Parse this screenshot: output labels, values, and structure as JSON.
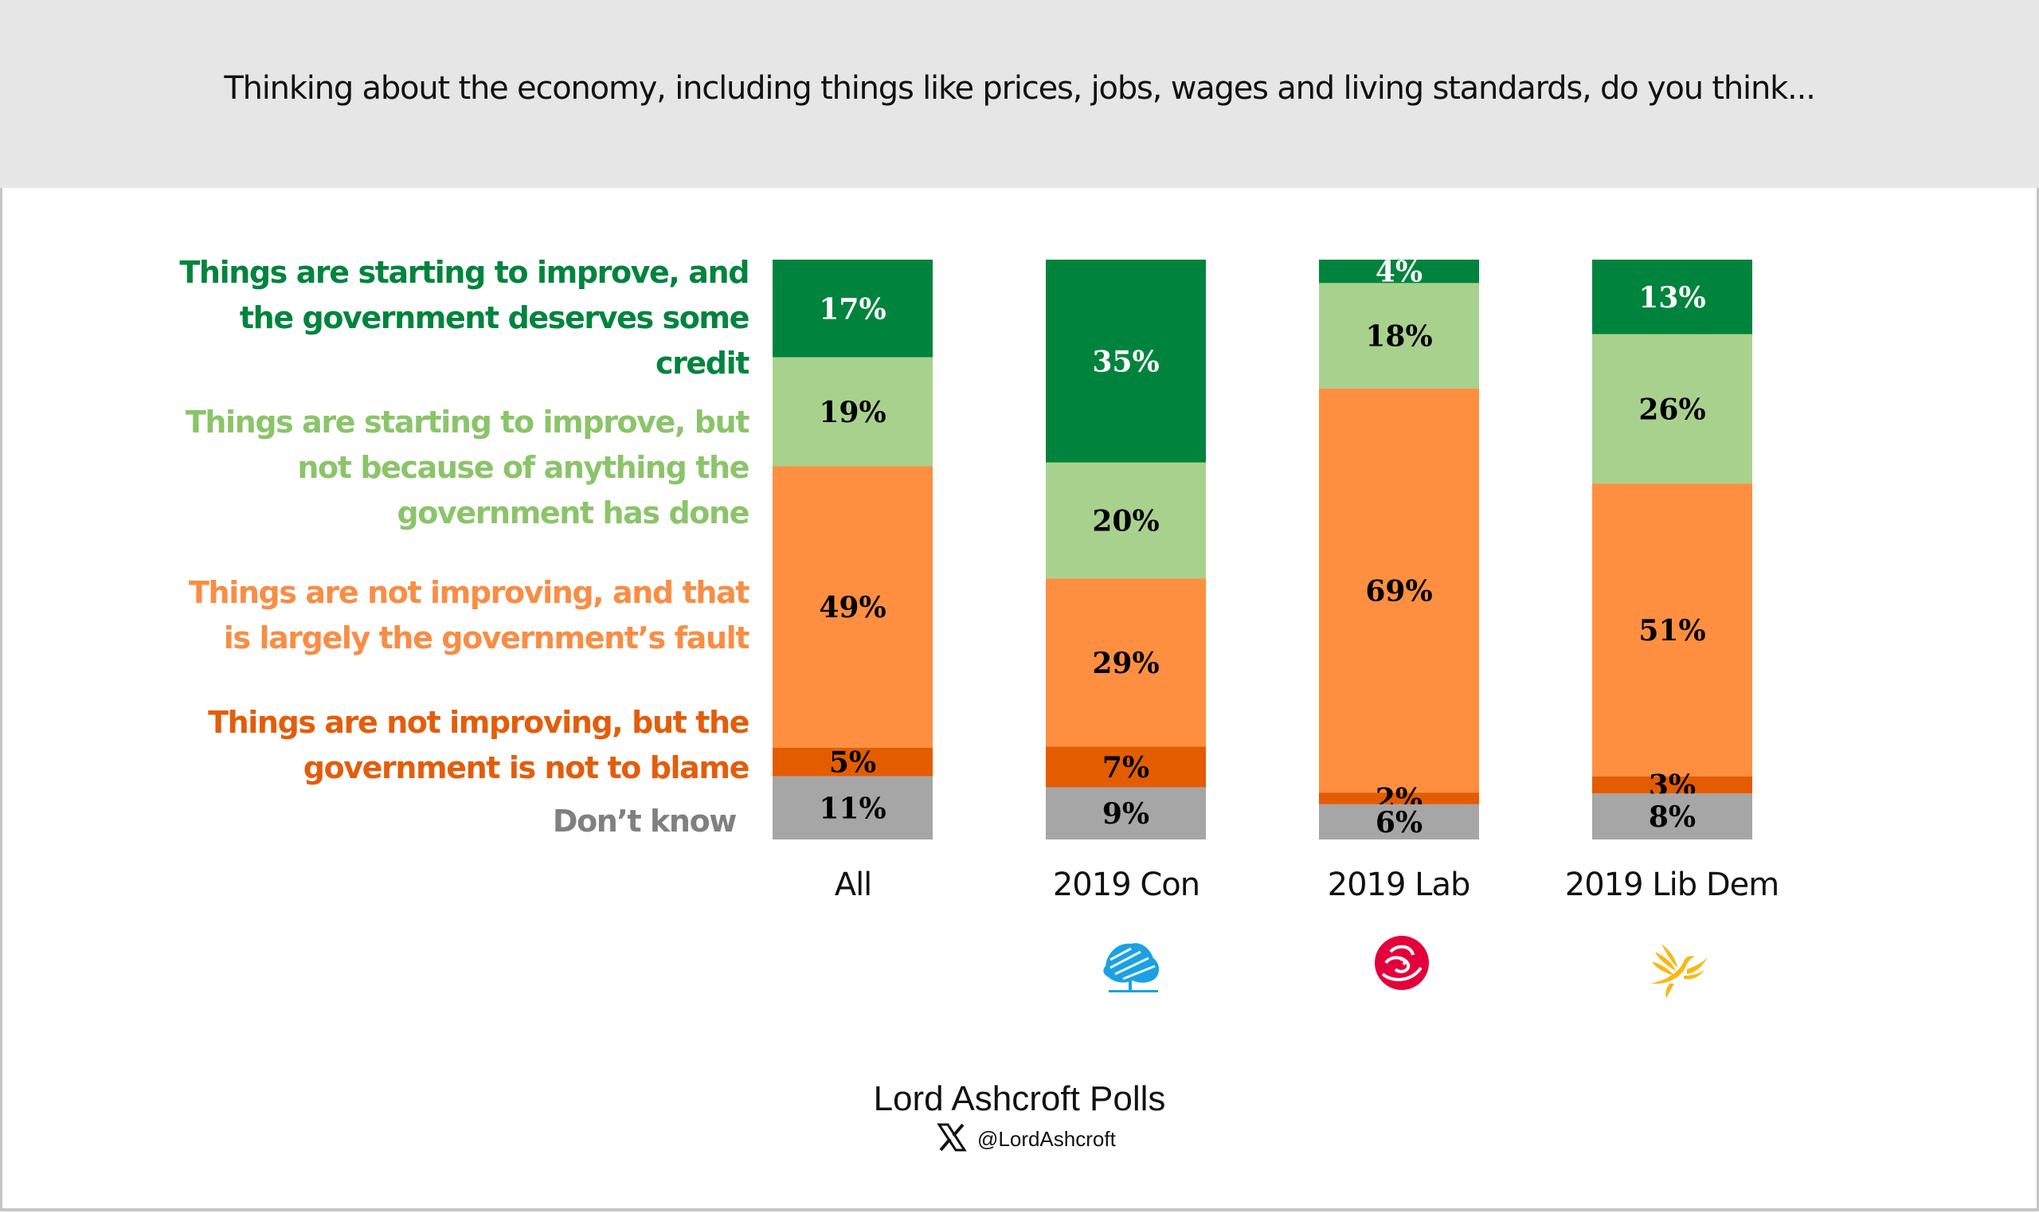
{
  "header": {
    "question": "Thinking about the economy, including things like prices, jobs, wages and living standards, do you think..."
  },
  "chart_data": {
    "type": "bar",
    "stacked": true,
    "orientation": "vertical",
    "title": "Thinking about the economy, including things like prices, jobs, wages and living standards, do you think...",
    "xlabel": "",
    "ylabel": "",
    "ylim": [
      0,
      100
    ],
    "grid": false,
    "legend_placement": "left",
    "categories": [
      "All",
      "2019 Con",
      "2019 Lab",
      "2019 Lib Dem"
    ],
    "series": [
      {
        "name": "Things are starting to improve, and the government deserves some credit",
        "color": "#00843D",
        "label_color": "#FFFFFF",
        "values": [
          17,
          35,
          4,
          13
        ]
      },
      {
        "name": "Things are starting to improve, but not because of anything the government has done",
        "color": "#A9D18E",
        "label_color": "#000000",
        "values": [
          19,
          20,
          18,
          26
        ]
      },
      {
        "name": "Things are not improving, and that is largely the government’s fault",
        "color": "#FF8F40",
        "label_color": "#000000",
        "values": [
          49,
          29,
          69,
          51
        ]
      },
      {
        "name": "Things are not improving, but the government is not to blame",
        "color": "#E35D00",
        "label_color": "#000000",
        "values": [
          5,
          7,
          2,
          3
        ]
      },
      {
        "name": "Don’t know",
        "color": "#A6A6A6",
        "label_color": "#000000",
        "values": [
          11,
          9,
          6,
          8
        ]
      }
    ],
    "value_suffix": "%"
  },
  "legend": [
    {
      "text": "Things are starting to improve, and\nthe government deserves some\ncredit",
      "color": "#00843D"
    },
    {
      "text": "Things are starting to improve, but\nnot because of anything the\ngovernment has done",
      "color": "#8BC46A"
    },
    {
      "text": "Things are not improving, and that\nis largely the government’s fault",
      "color": "#F98D45"
    },
    {
      "text": "Things are not improving, but the\ngovernment is not to blame",
      "color": "#E35D0B"
    },
    {
      "text": "Don’t know",
      "color": "#808080"
    }
  ],
  "party_logos": [
    {
      "category": "2019 Con",
      "icon": "conservative-tree-logo",
      "color": "#1BA1E2"
    },
    {
      "category": "2019 Lab",
      "icon": "labour-rose-logo",
      "color": "#E4003B"
    },
    {
      "category": "2019 Lib Dem",
      "icon": "libdem-bird-logo",
      "color": "#FAA61A"
    }
  ],
  "footer": {
    "brand": "Lord Ashcroft Polls",
    "social_icon": "x-logo-icon",
    "handle": "@LordAshcroft"
  }
}
